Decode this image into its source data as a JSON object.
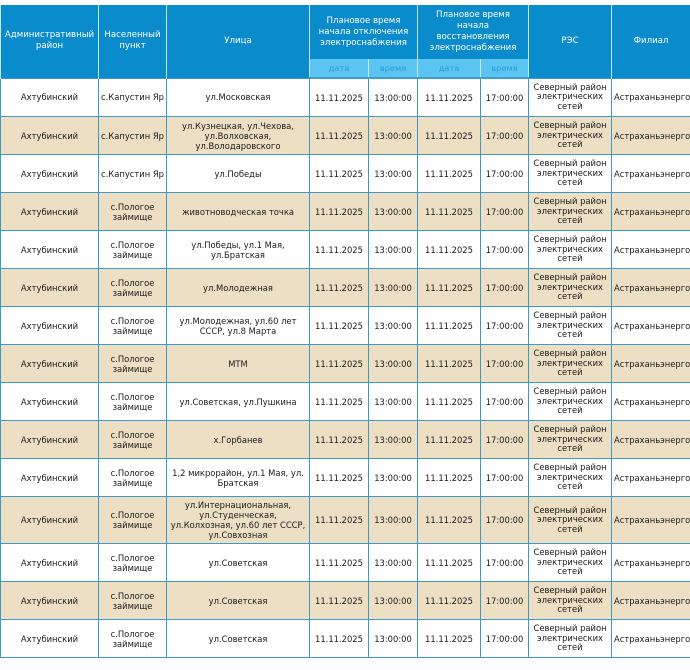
{
  "table": {
    "headers": {
      "district": "Административный район",
      "locality": "Населенный пункт",
      "street": "Улица",
      "outage_start": "Плановое время начала отключения электроснабжения",
      "restore_start": "Плановое время начала восстановления электроснабжения",
      "res": "РЭС",
      "branch": "Филиал"
    },
    "subheaders": {
      "outage_date": "дата",
      "outage_time": "время",
      "restore_date": "дата",
      "restore_time": "время"
    },
    "rows": [
      {
        "district": "Ахтубинский",
        "locality": "с.Капустин Яр",
        "street": "ул.Московская",
        "out_date": "11.11.2025",
        "out_time": "13:00:00",
        "res_date": "11.11.2025",
        "res_time": "17:00:00",
        "res": "Северный район электрических сетей",
        "branch": "Астраханьэнерго"
      },
      {
        "district": "Ахтубинский",
        "locality": "с.Капустин Яр",
        "street": "ул.Кузнецкая, ул.Чехова, ул.Волховская, ул.Володаровского",
        "out_date": "11.11.2025",
        "out_time": "13:00:00",
        "res_date": "11.11.2025",
        "res_time": "17:00:00",
        "res": "Северный район электрических сетей",
        "branch": "Астраханьэнерго"
      },
      {
        "district": "Ахтубинский",
        "locality": "с.Капустин Яр",
        "street": "ул.Победы",
        "out_date": "11.11.2025",
        "out_time": "13:00:00",
        "res_date": "11.11.2025",
        "res_time": "17:00:00",
        "res": "Северный район электрических сетей",
        "branch": "Астраханьэнерго"
      },
      {
        "district": "Ахтубинский",
        "locality": "с.Пологое займище",
        "street": "животноводческая точка",
        "out_date": "11.11.2025",
        "out_time": "13:00:00",
        "res_date": "11.11.2025",
        "res_time": "17:00:00",
        "res": "Северный район электрических сетей",
        "branch": "Астраханьэнерго"
      },
      {
        "district": "Ахтубинский",
        "locality": "с.Пологое займище",
        "street": "ул.Победы, ул.1 Мая, ул.Братская",
        "out_date": "11.11.2025",
        "out_time": "13:00:00",
        "res_date": "11.11.2025",
        "res_time": "17:00:00",
        "res": "Северный район электрических сетей",
        "branch": "Астраханьэнерго"
      },
      {
        "district": "Ахтубинский",
        "locality": "с.Пологое займище",
        "street": "ул.Молодежная",
        "out_date": "11.11.2025",
        "out_time": "13:00:00",
        "res_date": "11.11.2025",
        "res_time": "17:00:00",
        "res": "Северный район электрических сетей",
        "branch": "Астраханьэнерго"
      },
      {
        "district": "Ахтубинский",
        "locality": "с.Пологое займище",
        "street": "ул.Молодежная, ул.60 лет СССР, ул.8 Марта",
        "out_date": "11.11.2025",
        "out_time": "13:00:00",
        "res_date": "11.11.2025",
        "res_time": "17:00:00",
        "res": "Северный район электрических сетей",
        "branch": "Астраханьэнерго"
      },
      {
        "district": "Ахтубинский",
        "locality": "с.Пологое займище",
        "street": "МТМ",
        "out_date": "11.11.2025",
        "out_time": "13:00:00",
        "res_date": "11.11.2025",
        "res_time": "17:00:00",
        "res": "Северный район электрических сетей",
        "branch": "Астраханьэнерго"
      },
      {
        "district": "Ахтубинский",
        "locality": "с.Пологое займище",
        "street": "ул.Советская, ул.Пушкина",
        "out_date": "11.11.2025",
        "out_time": "13:00:00",
        "res_date": "11.11.2025",
        "res_time": "17:00:00",
        "res": "Северный район электрических сетей",
        "branch": "Астраханьэнерго"
      },
      {
        "district": "Ахтубинский",
        "locality": "с.Пологое займище",
        "street": "х.Горбанев",
        "out_date": "11.11.2025",
        "out_time": "13:00:00",
        "res_date": "11.11.2025",
        "res_time": "17:00:00",
        "res": "Северный район электрических сетей",
        "branch": "Астраханьэнерго"
      },
      {
        "district": "Ахтубинский",
        "locality": "с.Пологое займище",
        "street": "1,2 микрорайон, ул.1 Мая, ул. Братская",
        "out_date": "11.11.2025",
        "out_time": "13:00:00",
        "res_date": "11.11.2025",
        "res_time": "17:00:00",
        "res": "Северный район электрических сетей",
        "branch": "Астраханьэнерго"
      },
      {
        "district": "Ахтубинский",
        "locality": "с.Пологое займище",
        "street": "ул.Интернациональная, ул.Студенческая, ул.Колхозная, ул.60 лет СССР, ул.Совхозная",
        "out_date": "11.11.2025",
        "out_time": "13:00:00",
        "res_date": "11.11.2025",
        "res_time": "17:00:00",
        "res": "Северный район электрических сетей",
        "branch": "Астраханьэнерго"
      },
      {
        "district": "Ахтубинский",
        "locality": "с.Пологое займище",
        "street": "ул.Советская",
        "out_date": "11.11.2025",
        "out_time": "13:00:00",
        "res_date": "11.11.2025",
        "res_time": "17:00:00",
        "res": "Северный район электрических сетей",
        "branch": "Астраханьэнерго"
      },
      {
        "district": "Ахтубинский",
        "locality": "с.Пологое займище",
        "street": "ул.Советская",
        "out_date": "11.11.2025",
        "out_time": "13:00:00",
        "res_date": "11.11.2025",
        "res_time": "17:00:00",
        "res": "Северный район электрических сетей",
        "branch": "Астраханьэнерго"
      },
      {
        "district": "Ахтубинский",
        "locality": "с.Пологое займище",
        "street": "ул.Советская",
        "out_date": "11.11.2025",
        "out_time": "13:00:00",
        "res_date": "11.11.2025",
        "res_time": "17:00:00",
        "res": "Северный район электрических сетей",
        "branch": "Астраханьэнерго"
      }
    ]
  },
  "colors": {
    "header_bg": "#0a8bcb",
    "subheader_bg": "#5bc4f1",
    "row_alt_bg": "#eddfc3",
    "border": "#3c9ac9"
  }
}
